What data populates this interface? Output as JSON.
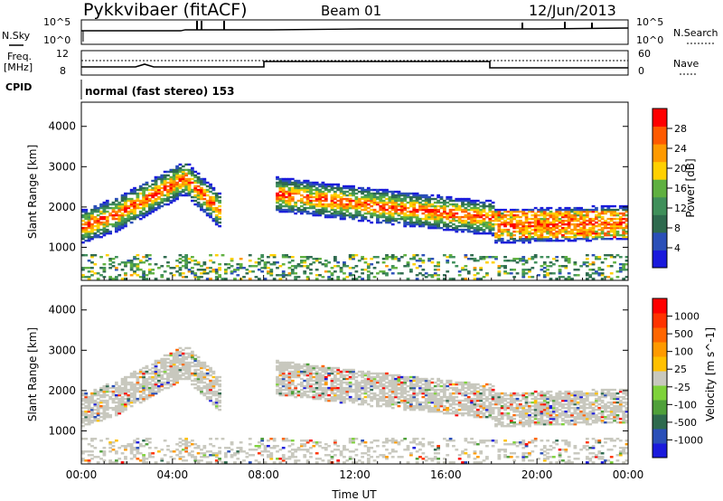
{
  "header": {
    "station": "Pykkvibaer (fitACF)",
    "beam": "Beam 01",
    "date": "12/Jun/2013"
  },
  "strip_labels": {
    "nsky": "N.Sky",
    "nsearch": "N.Search",
    "freq_line1": "Freq.",
    "freq_line2": "[MHz]",
    "nave": "Nave",
    "cpid": "CPID",
    "cpid_value": "normal (fast stereo) 153",
    "noise_left_ticks": [
      "10^5",
      "10^0"
    ],
    "noise_right_ticks": [
      "10^5",
      "10^0"
    ],
    "freq_left_ticks": [
      "12",
      "8"
    ],
    "nave_right_ticks": [
      "60",
      "0"
    ]
  },
  "colors": {
    "power_scale": [
      "#1a1adc",
      "#2a4fb8",
      "#2e6a4e",
      "#3f8f5a",
      "#5fb040",
      "#ffd000",
      "#ff9a00",
      "#ff5a00",
      "#ff0000"
    ],
    "velocity_scale": [
      "#1a1adc",
      "#2a4fb8",
      "#2e6a4e",
      "#4fa03a",
      "#7ed23a",
      "#c8c8be",
      "#ffc000",
      "#ff9a00",
      "#ff6600",
      "#ff3300",
      "#ff0000"
    ],
    "ground_scatter": "#c8c8be"
  },
  "chart_data": [
    {
      "type": "heatmap",
      "name": "power",
      "xlabel": "Time UT",
      "ylabel": "Slant Range [km]",
      "x_ticks": [
        "00:00",
        "04:00",
        "08:00",
        "12:00",
        "16:00",
        "20:00",
        "00:00"
      ],
      "xlim_hours": [
        0,
        24
      ],
      "y_ticks": [
        1000,
        2000,
        3000,
        4000
      ],
      "ylim": [
        180,
        4600
      ],
      "colorbar": {
        "label": "Power [dB]",
        "ticks": [
          4,
          8,
          12,
          16,
          20,
          24,
          28
        ],
        "range": [
          0,
          30
        ]
      },
      "echo_bands": [
        {
          "start_h": 0.0,
          "end_h": 1.5,
          "from_km": 1500,
          "to_km": 1800
        },
        {
          "start_h": 1.5,
          "end_h": 4.5,
          "from_km": 1800,
          "to_km": 2700
        },
        {
          "start_h": 4.5,
          "end_h": 6.0,
          "from_km": 2700,
          "to_km": 1900
        },
        {
          "start_h": 8.5,
          "end_h": 13.0,
          "from_km": 2300,
          "to_km": 2000
        },
        {
          "start_h": 13.0,
          "end_h": 18.0,
          "from_km": 2000,
          "to_km": 1700
        },
        {
          "start_h": 18.0,
          "end_h": 24.0,
          "from_km": 1500,
          "to_km": 1600
        }
      ]
    },
    {
      "type": "heatmap",
      "name": "velocity",
      "xlabel": "Time UT",
      "ylabel": "Slant Range [km]",
      "x_ticks": [
        "00:00",
        "04:00",
        "08:00",
        "12:00",
        "16:00",
        "20:00",
        "00:00"
      ],
      "xlim_hours": [
        0,
        24
      ],
      "y_ticks": [
        1000,
        2000,
        3000,
        4000
      ],
      "ylim": [
        180,
        4600
      ],
      "colorbar": {
        "label": "Velocity [m s^-1]",
        "ticks": [
          "1000",
          "500",
          "100",
          "25",
          "-25",
          "-100",
          "-500",
          "-1000"
        ]
      }
    }
  ]
}
